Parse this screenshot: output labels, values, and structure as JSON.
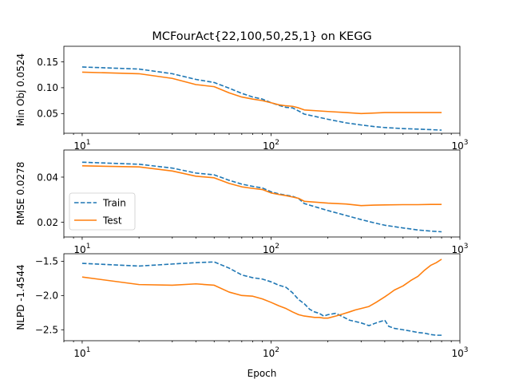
{
  "title": "MCFourAct{22,100,50,25,1} on KEGG",
  "xlabel": "Epoch",
  "legend": {
    "placement": "center-left of middle panel",
    "entries": [
      {
        "name": "Train",
        "color": "#1f77b4",
        "style": "dashed"
      },
      {
        "name": "Test",
        "color": "#ff7f0e",
        "style": "solid"
      }
    ]
  },
  "chart_data": [
    {
      "type": "line",
      "ylabel": "Min Obj 0.0524",
      "xscale": "log",
      "xlim": [
        8,
        1000
      ],
      "ylim": [
        0.012,
        0.18
      ],
      "xticks": [
        {
          "value": 10,
          "base": "10",
          "exp": "1"
        },
        {
          "value": 100,
          "base": "10",
          "exp": "2"
        },
        {
          "value": 1000,
          "base": "10",
          "exp": "3"
        }
      ],
      "yticks": [
        {
          "value": 0.05,
          "label": "0.05"
        },
        {
          "value": 0.1,
          "label": "0.10"
        },
        {
          "value": 0.15,
          "label": "0.15"
        }
      ],
      "series": [
        {
          "name": "Train",
          "color": "#1f77b4",
          "style": "dashed",
          "x": [
            10,
            20,
            30,
            40,
            50,
            60,
            70,
            80,
            90,
            100,
            110,
            120,
            130,
            140,
            150,
            200,
            250,
            300,
            350,
            400,
            500,
            600,
            700,
            800
          ],
          "y": [
            0.14,
            0.136,
            0.127,
            0.116,
            0.11,
            0.099,
            0.089,
            0.082,
            0.078,
            0.071,
            0.066,
            0.062,
            0.061,
            0.055,
            0.049,
            0.039,
            0.032,
            0.028,
            0.025,
            0.023,
            0.021,
            0.02,
            0.019,
            0.018
          ]
        },
        {
          "name": "Test",
          "color": "#ff7f0e",
          "style": "solid",
          "x": [
            10,
            20,
            30,
            40,
            50,
            60,
            70,
            80,
            90,
            100,
            110,
            120,
            130,
            140,
            150,
            200,
            250,
            300,
            350,
            400,
            500,
            600,
            700,
            800
          ],
          "y": [
            0.13,
            0.127,
            0.118,
            0.106,
            0.102,
            0.09,
            0.082,
            0.078,
            0.075,
            0.071,
            0.067,
            0.065,
            0.064,
            0.061,
            0.057,
            0.054,
            0.052,
            0.05,
            0.051,
            0.052,
            0.052,
            0.052,
            0.052,
            0.052
          ]
        }
      ]
    },
    {
      "type": "line",
      "ylabel": "RMSE 0.0278",
      "xscale": "log",
      "xlim": [
        8,
        1000
      ],
      "ylim": [
        0.0135,
        0.052
      ],
      "xticks": [
        {
          "value": 10,
          "base": "10",
          "exp": "1"
        },
        {
          "value": 100,
          "base": "10",
          "exp": "2"
        },
        {
          "value": 1000,
          "base": "10",
          "exp": "3"
        }
      ],
      "yticks": [
        {
          "value": 0.02,
          "label": "0.02"
        },
        {
          "value": 0.04,
          "label": "0.04"
        }
      ],
      "series": [
        {
          "name": "Train",
          "color": "#1f77b4",
          "style": "dashed",
          "x": [
            10,
            20,
            30,
            40,
            50,
            60,
            70,
            80,
            90,
            100,
            110,
            120,
            130,
            140,
            150,
            200,
            250,
            300,
            350,
            400,
            500,
            600,
            700,
            800
          ],
          "y": [
            0.0466,
            0.0457,
            0.044,
            0.0418,
            0.041,
            0.0386,
            0.0369,
            0.0359,
            0.0352,
            0.0335,
            0.0326,
            0.032,
            0.0315,
            0.0305,
            0.0283,
            0.0252,
            0.023,
            0.0212,
            0.0198,
            0.0187,
            0.0175,
            0.0166,
            0.0161,
            0.0158
          ]
        },
        {
          "name": "Test",
          "color": "#ff7f0e",
          "style": "solid",
          "x": [
            10,
            20,
            30,
            40,
            50,
            60,
            70,
            80,
            90,
            100,
            110,
            120,
            130,
            140,
            150,
            200,
            250,
            300,
            350,
            400,
            500,
            600,
            700,
            800
          ],
          "y": [
            0.045,
            0.0445,
            0.0427,
            0.0404,
            0.0397,
            0.0372,
            0.0357,
            0.035,
            0.0345,
            0.033,
            0.0323,
            0.0318,
            0.0312,
            0.0306,
            0.0293,
            0.0285,
            0.0281,
            0.0274,
            0.0276,
            0.0277,
            0.0278,
            0.0278,
            0.0279,
            0.0279
          ]
        }
      ]
    },
    {
      "type": "line",
      "ylabel": "NLPD -1.4544",
      "xscale": "log",
      "xlim": [
        8,
        1000
      ],
      "ylim": [
        -2.66,
        -1.39
      ],
      "xticks": [
        {
          "value": 10,
          "base": "10",
          "exp": "1"
        },
        {
          "value": 100,
          "base": "10",
          "exp": "2"
        },
        {
          "value": 1000,
          "base": "10",
          "exp": "3"
        }
      ],
      "yticks": [
        {
          "value": -1.5,
          "label": "−1.5"
        },
        {
          "value": -2.0,
          "label": "−2.0"
        },
        {
          "value": -2.5,
          "label": "−2.5"
        }
      ],
      "series": [
        {
          "name": "Train",
          "color": "#1f77b4",
          "style": "dashed",
          "x": [
            10,
            20,
            30,
            40,
            50,
            60,
            70,
            80,
            90,
            100,
            110,
            120,
            130,
            140,
            150,
            160,
            170,
            180,
            190,
            200,
            220,
            240,
            260,
            280,
            300,
            330,
            360,
            400,
            420,
            450,
            500,
            550,
            600,
            650,
            700,
            750,
            800
          ],
          "y": [
            -1.53,
            -1.57,
            -1.54,
            -1.52,
            -1.51,
            -1.6,
            -1.7,
            -1.74,
            -1.76,
            -1.8,
            -1.85,
            -1.88,
            -1.96,
            -2.06,
            -2.12,
            -2.2,
            -2.24,
            -2.26,
            -2.3,
            -2.28,
            -2.26,
            -2.31,
            -2.36,
            -2.38,
            -2.4,
            -2.44,
            -2.4,
            -2.36,
            -2.45,
            -2.48,
            -2.5,
            -2.52,
            -2.54,
            -2.55,
            -2.57,
            -2.58,
            -2.58
          ]
        },
        {
          "name": "Test",
          "color": "#ff7f0e",
          "style": "solid",
          "x": [
            10,
            20,
            30,
            40,
            50,
            60,
            70,
            80,
            90,
            100,
            110,
            120,
            130,
            140,
            150,
            160,
            170,
            180,
            190,
            200,
            220,
            240,
            260,
            280,
            300,
            330,
            360,
            400,
            420,
            450,
            500,
            550,
            600,
            650,
            700,
            750,
            800
          ],
          "y": [
            -1.73,
            -1.84,
            -1.85,
            -1.83,
            -1.85,
            -1.95,
            -2.0,
            -2.01,
            -2.05,
            -2.1,
            -2.15,
            -2.19,
            -2.24,
            -2.28,
            -2.3,
            -2.31,
            -2.32,
            -2.32,
            -2.33,
            -2.33,
            -2.3,
            -2.27,
            -2.24,
            -2.21,
            -2.19,
            -2.16,
            -2.1,
            -2.02,
            -1.98,
            -1.92,
            -1.86,
            -1.78,
            -1.72,
            -1.63,
            -1.56,
            -1.52,
            -1.47
          ]
        }
      ]
    }
  ]
}
